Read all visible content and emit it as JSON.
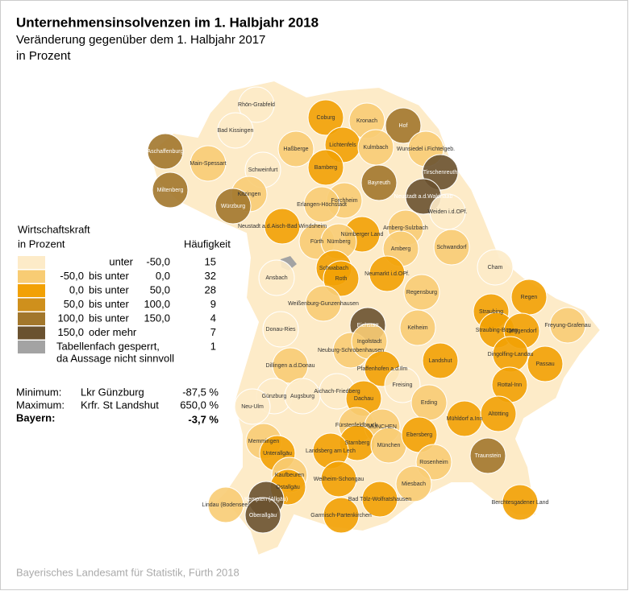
{
  "header": {
    "title": "Unternehmensinsolvenzen im 1. Halbjahr 2018",
    "subtitle": "Veränderung gegenüber dem 1. Halbjahr 2017",
    "unit": "in Prozent"
  },
  "legend": {
    "title": "Wirtschaftskraft",
    "unit": "in Prozent",
    "count_header": "Häufigkeit",
    "classes": [
      {
        "color": "#fdebc8",
        "op": "unter",
        "to": "-50,0",
        "count": 15
      },
      {
        "color": "#f8cc74",
        "from": "-50,0",
        "op": "bis unter",
        "to": "0,0",
        "count": 32
      },
      {
        "color": "#f2a104",
        "from": "0,0",
        "op": "bis unter",
        "to": "50,0",
        "count": 28
      },
      {
        "color": "#cf901c",
        "from": "50,0",
        "op": "bis unter",
        "to": "100,0",
        "count": 9
      },
      {
        "color": "#a2772c",
        "from": "100,0",
        "op": "bis unter",
        "to": "150,0",
        "count": 4
      },
      {
        "color": "#6a5230",
        "from": "150,0",
        "op": "oder mehr",
        "count": 7
      },
      {
        "color": "#a3a3a3",
        "lines": [
          "Tabellenfach gesperrt,",
          "da Aussage nicht sinnvoll"
        ],
        "count": 1
      }
    ]
  },
  "stats": {
    "minimum": {
      "label": "Minimum:",
      "region": "Lkr Günzburg",
      "value": "-87,5 %"
    },
    "maximum": {
      "label": "Maximum:",
      "region": "Krfr. St Landshut",
      "value": "650,0 %"
    },
    "total": {
      "label": "Bayern:",
      "value": "-3,7 %"
    }
  },
  "regions": [
    {
      "name": "Rhön-Grabfeld",
      "class": 0
    },
    {
      "name": "Bad Kissingen",
      "class": 0
    },
    {
      "name": "Coburg",
      "class": 2
    },
    {
      "name": "Kronach",
      "class": 1
    },
    {
      "name": "Hof",
      "class": 4
    },
    {
      "name": "Haßberge",
      "class": 1
    },
    {
      "name": "Lichtenfels",
      "class": 2
    },
    {
      "name": "Kulmbach",
      "class": 1
    },
    {
      "name": "Wunsiedel i.Fichtelgeb.",
      "class": 1
    },
    {
      "name": "Aschaffenburg",
      "class": 4
    },
    {
      "name": "Main-Spessart",
      "class": 1
    },
    {
      "name": "Schweinfurt",
      "class": 0
    },
    {
      "name": "Bamberg",
      "class": 2
    },
    {
      "name": "Bayreuth",
      "class": 4
    },
    {
      "name": "Tirschenreuth",
      "class": 5
    },
    {
      "name": "Miltenberg",
      "class": 4
    },
    {
      "name": "Kitzingen",
      "class": 1
    },
    {
      "name": "Würzburg",
      "class": 4
    },
    {
      "name": "Forchheim",
      "class": 1
    },
    {
      "name": "Erlangen-Höchstadt",
      "class": 1
    },
    {
      "name": "Neustadt a.d.Waldnaab",
      "class": 5
    },
    {
      "name": "Weiden i.d.OPf.",
      "class": 0
    },
    {
      "name": "Neustadt a.d.Aisch-Bad Windsheim",
      "class": 2
    },
    {
      "name": "Nürnberger Land",
      "class": 2
    },
    {
      "name": "Amberg-Sulzbach",
      "class": 1
    },
    {
      "name": "Fürth",
      "class": 1
    },
    {
      "name": "Nürnberg",
      "class": 1
    },
    {
      "name": "Amberg",
      "class": 1
    },
    {
      "name": "Schwandorf",
      "class": 1
    },
    {
      "name": "Cham",
      "class": 0
    },
    {
      "name": "Ansbach",
      "class": 0
    },
    {
      "name": "Schwabach",
      "class": 2
    },
    {
      "name": "Roth",
      "class": 2
    },
    {
      "name": "Neumarkt i.d.OPf.",
      "class": 2
    },
    {
      "name": "Regensburg",
      "class": 1
    },
    {
      "name": "Regen",
      "class": 2
    },
    {
      "name": "Weißenburg-Gunzenhausen",
      "class": 1
    },
    {
      "name": "Straubing",
      "class": 2
    },
    {
      "name": "Freyung-Grafenau",
      "class": 1
    },
    {
      "name": "Donau-Ries",
      "class": 0
    },
    {
      "name": "Eichstätt",
      "class": 5
    },
    {
      "name": "Kelheim",
      "class": 1
    },
    {
      "name": "Straubing-Bogen",
      "class": 2
    },
    {
      "name": "Deggendorf",
      "class": 2
    },
    {
      "name": "Neuburg-Schrobenhausen",
      "class": 1
    },
    {
      "name": "Ingolstadt",
      "class": 1
    },
    {
      "name": "Landshut",
      "class": 2
    },
    {
      "name": "Dingolfing-Landau",
      "class": 2
    },
    {
      "name": "Passau",
      "class": 2
    },
    {
      "name": "Pfaffenhofen a.d.Ilm",
      "class": 2
    },
    {
      "name": "Dillingen a.d.Donau",
      "class": 1
    },
    {
      "name": "Rottal-Inn",
      "class": 2
    },
    {
      "name": "Aichach-Friedberg",
      "class": 0
    },
    {
      "name": "Freising",
      "class": 0
    },
    {
      "name": "Günzburg",
      "class": 0
    },
    {
      "name": "Augsburg",
      "class": 0
    },
    {
      "name": "Dachau",
      "class": 2
    },
    {
      "name": "Erding",
      "class": 1
    },
    {
      "name": "Neu-Ulm",
      "class": 0
    },
    {
      "name": "Mühldorf a.Inn",
      "class": 2
    },
    {
      "name": "Altötting",
      "class": 2
    },
    {
      "name": "Fürstenfeldbruck",
      "class": 1
    },
    {
      "name": "MÜNCHEN",
      "class": 1
    },
    {
      "name": "Memmingen",
      "class": 1
    },
    {
      "name": "Starnberg",
      "class": 2
    },
    {
      "name": "Landsberg am Lech",
      "class": 2
    },
    {
      "name": "München",
      "class": 1
    },
    {
      "name": "Ebersberg",
      "class": 2
    },
    {
      "name": "Unterallgäu",
      "class": 2
    },
    {
      "name": "Rosenheim",
      "class": 1
    },
    {
      "name": "Traunstein",
      "class": 4
    },
    {
      "name": "Kaufbeuren",
      "class": 1
    },
    {
      "name": "Ostallgäu",
      "class": 2
    },
    {
      "name": "Weilheim-Schongau",
      "class": 2
    },
    {
      "name": "Miesbach",
      "class": 1
    },
    {
      "name": "Bad Tölz-Wolfratshausen",
      "class": 2
    },
    {
      "name": "Berchtesgadener Land",
      "class": 2
    },
    {
      "name": "Kempten (Allgäu)",
      "class": 5
    },
    {
      "name": "Lindau (Bodensee)",
      "class": 1
    },
    {
      "name": "Oberallgäu",
      "class": 5
    },
    {
      "name": "Garmisch-Partenkirchen",
      "class": 2
    }
  ],
  "source": "Bayerisches Landesamt für Statistik, Fürth 2018"
}
